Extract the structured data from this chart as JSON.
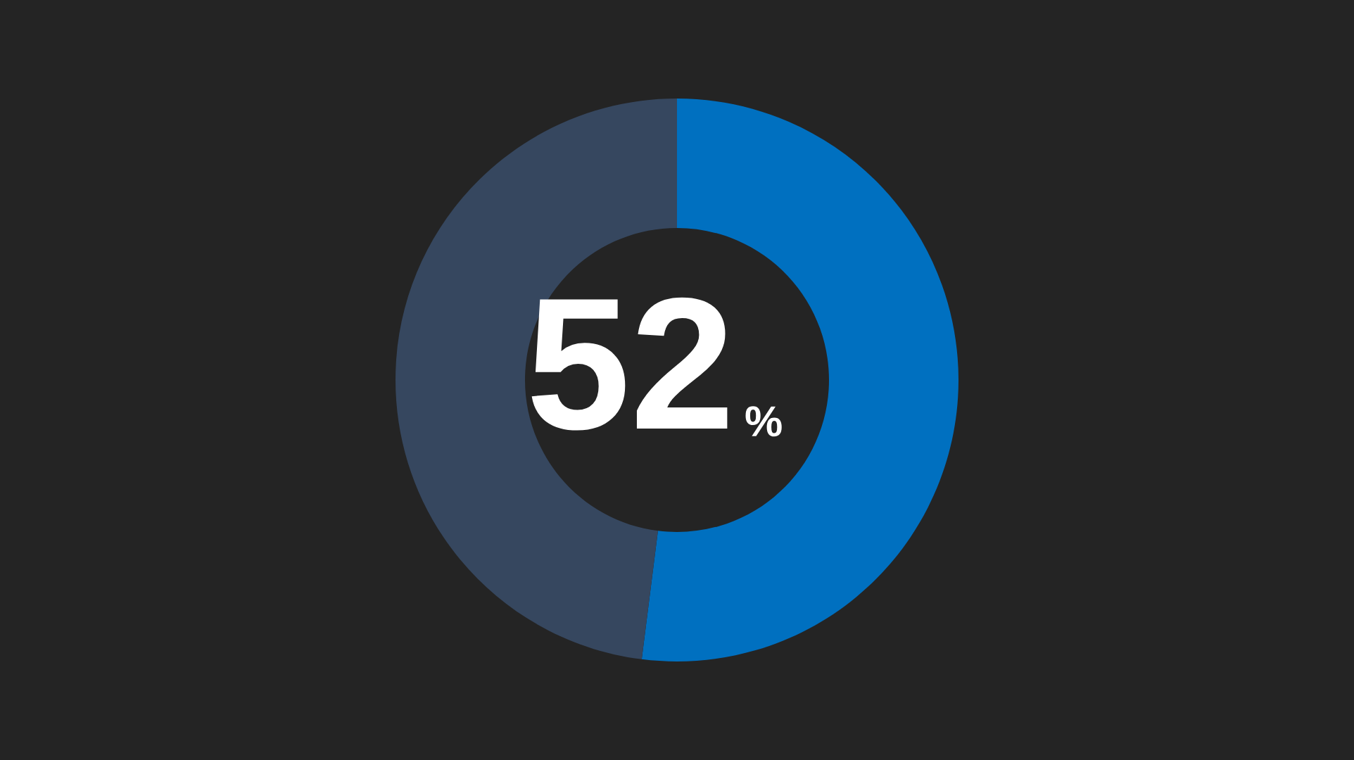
{
  "chart_data": {
    "type": "donut",
    "categories": [
      null,
      null
    ],
    "values": [
      52,
      48
    ],
    "colors": [
      "#0070c0",
      "#36475f"
    ],
    "annotations": [
      "52",
      "%"
    ]
  }
}
